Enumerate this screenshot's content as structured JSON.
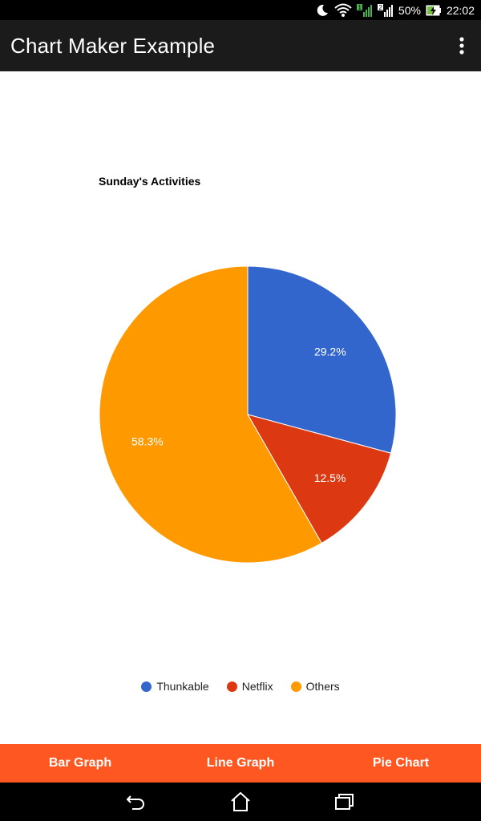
{
  "status_bar": {
    "battery": "50%",
    "time": "22:02",
    "sim1": "1",
    "sim2": "2"
  },
  "app_bar": {
    "title": "Chart Maker Example"
  },
  "chart_data": {
    "type": "pie",
    "title": "Sunday's Activities",
    "categories": [
      "Thunkable",
      "Netflix",
      "Others"
    ],
    "values": [
      29.2,
      12.5,
      58.3
    ],
    "labels": [
      "29.2%",
      "12.5%",
      "58.3%"
    ],
    "colors": [
      "#3366cc",
      "#dc3912",
      "#ff9900"
    ],
    "legend_position": "bottom"
  },
  "tabs": [
    {
      "label": "Bar Graph"
    },
    {
      "label": "Line Graph"
    },
    {
      "label": "Pie Chart"
    }
  ]
}
